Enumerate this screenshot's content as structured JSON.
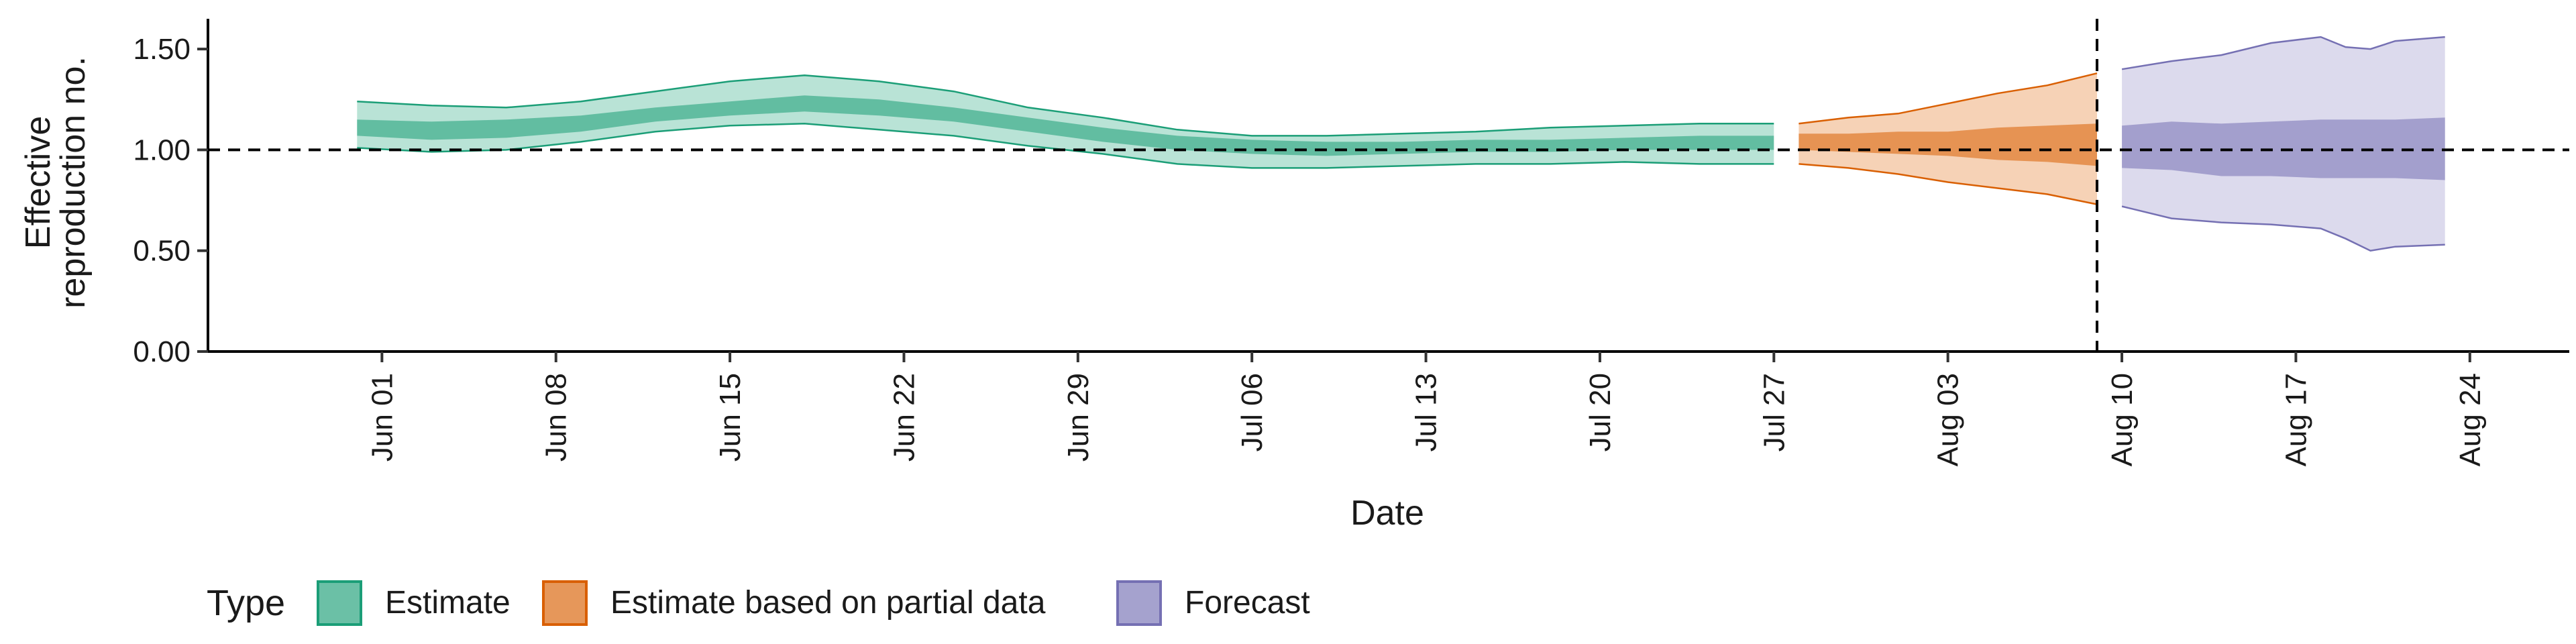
{
  "chart_data": {
    "type": "area",
    "title": "",
    "xlabel": "Date",
    "ylabel_lines": [
      "Effective",
      "reproduction no."
    ],
    "ylim": [
      0,
      1.65
    ],
    "yticks": [
      0,
      0.5,
      1.0,
      1.5
    ],
    "ytick_labels": [
      "0.00",
      "0.50",
      "1.00",
      "1.50"
    ],
    "xlim": [
      "2020-05-25",
      "2020-08-28"
    ],
    "xticks": [
      "2020-06-01",
      "2020-06-08",
      "2020-06-15",
      "2020-06-22",
      "2020-06-29",
      "2020-07-06",
      "2020-07-13",
      "2020-07-20",
      "2020-07-27",
      "2020-08-03",
      "2020-08-10",
      "2020-08-17",
      "2020-08-24"
    ],
    "xtick_labels": [
      "Jun 01",
      "Jun 08",
      "Jun 15",
      "Jun 22",
      "Jun 29",
      "Jul 06",
      "Jul 13",
      "Jul 20",
      "Jul 27",
      "Aug 03",
      "Aug 10",
      "Aug 17",
      "Aug 24"
    ],
    "reference_line_y": 1.0,
    "reference_line_x": "2020-08-09",
    "grid": false,
    "legend": {
      "title": "Type",
      "position": "bottom-left",
      "items": [
        "Estimate",
        "Estimate based on partial data",
        "Forecast"
      ]
    },
    "series": [
      {
        "name": "Estimate",
        "fill_dark": "#1b9e77",
        "fill_light": "#b9e3d6",
        "stroke": "#1b9e77",
        "points": [
          {
            "date": "2020-05-31",
            "lo90": 1.01,
            "lo50": 1.07,
            "hi50": 1.15,
            "hi90": 1.24
          },
          {
            "date": "2020-06-03",
            "lo90": 0.99,
            "lo50": 1.05,
            "hi50": 1.14,
            "hi90": 1.22
          },
          {
            "date": "2020-06-06",
            "lo90": 1.0,
            "lo50": 1.06,
            "hi50": 1.15,
            "hi90": 1.21
          },
          {
            "date": "2020-06-09",
            "lo90": 1.04,
            "lo50": 1.09,
            "hi50": 1.17,
            "hi90": 1.24
          },
          {
            "date": "2020-06-12",
            "lo90": 1.09,
            "lo50": 1.14,
            "hi50": 1.21,
            "hi90": 1.29
          },
          {
            "date": "2020-06-15",
            "lo90": 1.12,
            "lo50": 1.17,
            "hi50": 1.24,
            "hi90": 1.34
          },
          {
            "date": "2020-06-18",
            "lo90": 1.13,
            "lo50": 1.19,
            "hi50": 1.27,
            "hi90": 1.37
          },
          {
            "date": "2020-06-21",
            "lo90": 1.1,
            "lo50": 1.17,
            "hi50": 1.25,
            "hi90": 1.34
          },
          {
            "date": "2020-06-24",
            "lo90": 1.07,
            "lo50": 1.14,
            "hi50": 1.21,
            "hi90": 1.29
          },
          {
            "date": "2020-06-27",
            "lo90": 1.02,
            "lo50": 1.09,
            "hi50": 1.16,
            "hi90": 1.21
          },
          {
            "date": "2020-06-30",
            "lo90": 0.98,
            "lo50": 1.04,
            "hi50": 1.11,
            "hi90": 1.16
          },
          {
            "date": "2020-07-03",
            "lo90": 0.93,
            "lo50": 1.0,
            "hi50": 1.07,
            "hi90": 1.1
          },
          {
            "date": "2020-07-06",
            "lo90": 0.91,
            "lo50": 0.98,
            "hi50": 1.05,
            "hi90": 1.07
          },
          {
            "date": "2020-07-09",
            "lo90": 0.91,
            "lo50": 0.97,
            "hi50": 1.04,
            "hi90": 1.07
          },
          {
            "date": "2020-07-12",
            "lo90": 0.92,
            "lo50": 0.98,
            "hi50": 1.04,
            "hi90": 1.08
          },
          {
            "date": "2020-07-15",
            "lo90": 0.93,
            "lo50": 0.99,
            "hi50": 1.05,
            "hi90": 1.09
          },
          {
            "date": "2020-07-18",
            "lo90": 0.93,
            "lo50": 0.99,
            "hi50": 1.05,
            "hi90": 1.11
          },
          {
            "date": "2020-07-21",
            "lo90": 0.94,
            "lo50": 1.0,
            "hi50": 1.06,
            "hi90": 1.12
          },
          {
            "date": "2020-07-24",
            "lo90": 0.93,
            "lo50": 1.0,
            "hi50": 1.07,
            "hi90": 1.13
          },
          {
            "date": "2020-07-27",
            "lo90": 0.93,
            "lo50": 1.0,
            "hi50": 1.07,
            "hi90": 1.13
          }
        ]
      },
      {
        "name": "Estimate based on partial data",
        "fill_dark": "#d95f02",
        "fill_light": "#f6d2b6",
        "stroke": "#d95f02",
        "points": [
          {
            "date": "2020-07-28",
            "lo90": 0.93,
            "lo50": 1.0,
            "hi50": 1.08,
            "hi90": 1.13
          },
          {
            "date": "2020-07-30",
            "lo90": 0.91,
            "lo50": 0.99,
            "hi50": 1.08,
            "hi90": 1.16
          },
          {
            "date": "2020-08-01",
            "lo90": 0.88,
            "lo50": 0.98,
            "hi50": 1.09,
            "hi90": 1.18
          },
          {
            "date": "2020-08-03",
            "lo90": 0.84,
            "lo50": 0.97,
            "hi50": 1.09,
            "hi90": 1.23
          },
          {
            "date": "2020-08-05",
            "lo90": 0.81,
            "lo50": 0.95,
            "hi50": 1.11,
            "hi90": 1.28
          },
          {
            "date": "2020-08-07",
            "lo90": 0.78,
            "lo50": 0.94,
            "hi50": 1.12,
            "hi90": 1.32
          },
          {
            "date": "2020-08-09",
            "lo90": 0.73,
            "lo50": 0.92,
            "hi50": 1.13,
            "hi90": 1.38
          }
        ]
      },
      {
        "name": "Forecast",
        "fill_dark": "#7570b3",
        "fill_light": "#dcdaed",
        "stroke": "#7570b3",
        "points": [
          {
            "date": "2020-08-10",
            "lo90": 0.72,
            "lo50": 0.91,
            "hi50": 1.12,
            "hi90": 1.4
          },
          {
            "date": "2020-08-12",
            "lo90": 0.66,
            "lo50": 0.9,
            "hi50": 1.14,
            "hi90": 1.44
          },
          {
            "date": "2020-08-14",
            "lo90": 0.64,
            "lo50": 0.87,
            "hi50": 1.13,
            "hi90": 1.47
          },
          {
            "date": "2020-08-16",
            "lo90": 0.63,
            "lo50": 0.87,
            "hi50": 1.14,
            "hi90": 1.53
          },
          {
            "date": "2020-08-18",
            "lo90": 0.61,
            "lo50": 0.86,
            "hi50": 1.15,
            "hi90": 1.56
          },
          {
            "date": "2020-08-19",
            "lo90": 0.56,
            "lo50": 0.86,
            "hi50": 1.15,
            "hi90": 1.51
          },
          {
            "date": "2020-08-20",
            "lo90": 0.5,
            "lo50": 0.86,
            "hi50": 1.15,
            "hi90": 1.5
          },
          {
            "date": "2020-08-21",
            "lo90": 0.52,
            "lo50": 0.86,
            "hi50": 1.15,
            "hi90": 1.54
          },
          {
            "date": "2020-08-23",
            "lo90": 0.53,
            "lo50": 0.85,
            "hi50": 1.16,
            "hi90": 1.56
          }
        ]
      }
    ]
  }
}
